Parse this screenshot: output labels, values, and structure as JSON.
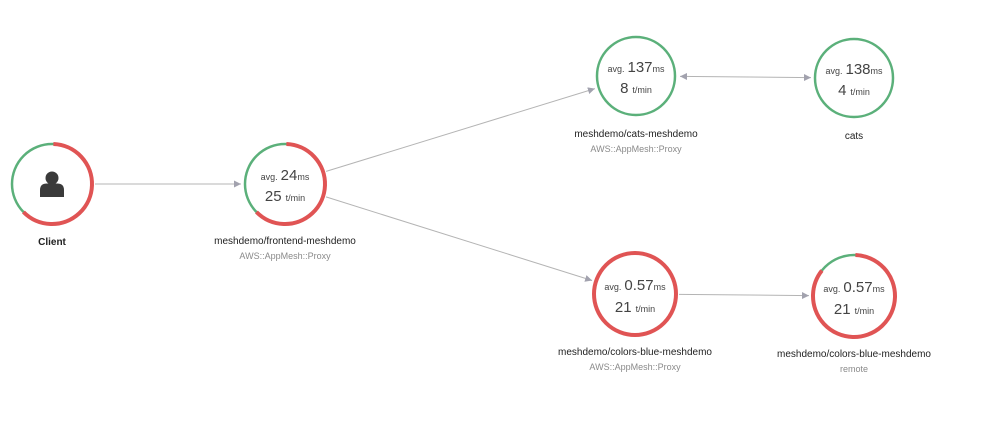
{
  "colors": {
    "ok": "#5bb07a",
    "fault": "#e05454",
    "edge": "#b4b4b4",
    "arrow": "#a2a2ae",
    "client_icon": "#3a3a3a"
  },
  "nodes": [
    {
      "id": "client",
      "kind": "client",
      "name": "Client",
      "type": "",
      "icon": "user-icon",
      "fault_fraction": 0.62
    },
    {
      "id": "frontend",
      "kind": "service",
      "name": "meshdemo/frontend-meshdemo",
      "type": "AWS::AppMesh::Proxy",
      "avg_label": "avg.",
      "latency": "24",
      "latency_unit": "ms",
      "throughput": "25",
      "throughput_unit": "t/min",
      "fault_fraction": 0.62
    },
    {
      "id": "cats-meshdemo",
      "kind": "service",
      "name": "meshdemo/cats-meshdemo",
      "type": "AWS::AppMesh::Proxy",
      "avg_label": "avg.",
      "latency": "137",
      "latency_unit": "ms",
      "throughput": "8",
      "throughput_unit": "t/min",
      "fault_fraction": 0
    },
    {
      "id": "cats",
      "kind": "service",
      "name": "cats",
      "type": "",
      "avg_label": "avg.",
      "latency": "138",
      "latency_unit": "ms",
      "throughput": "4",
      "throughput_unit": "t/min",
      "fault_fraction": 0
    },
    {
      "id": "colors-proxy",
      "kind": "service",
      "name": "meshdemo/colors-blue-meshdemo",
      "type": "AWS::AppMesh::Proxy",
      "avg_label": "avg.",
      "latency": "0.57",
      "latency_unit": "ms",
      "throughput": "21",
      "throughput_unit": "t/min",
      "fault_fraction": 1
    },
    {
      "id": "colors-remote",
      "kind": "service",
      "name": "meshdemo/colors-blue-meshdemo",
      "type": "remote",
      "avg_label": "avg.",
      "latency": "0.57",
      "latency_unit": "ms",
      "throughput": "21",
      "throughput_unit": "t/min",
      "fault_fraction": 0.85
    }
  ],
  "edges": [
    {
      "from": "client",
      "to": "frontend",
      "bidirectional": false
    },
    {
      "from": "frontend",
      "to": "cats-meshdemo",
      "bidirectional": false
    },
    {
      "from": "frontend",
      "to": "colors-proxy",
      "bidirectional": false
    },
    {
      "from": "cats-meshdemo",
      "to": "cats",
      "bidirectional": true
    },
    {
      "from": "colors-proxy",
      "to": "colors-remote",
      "bidirectional": false
    }
  ]
}
